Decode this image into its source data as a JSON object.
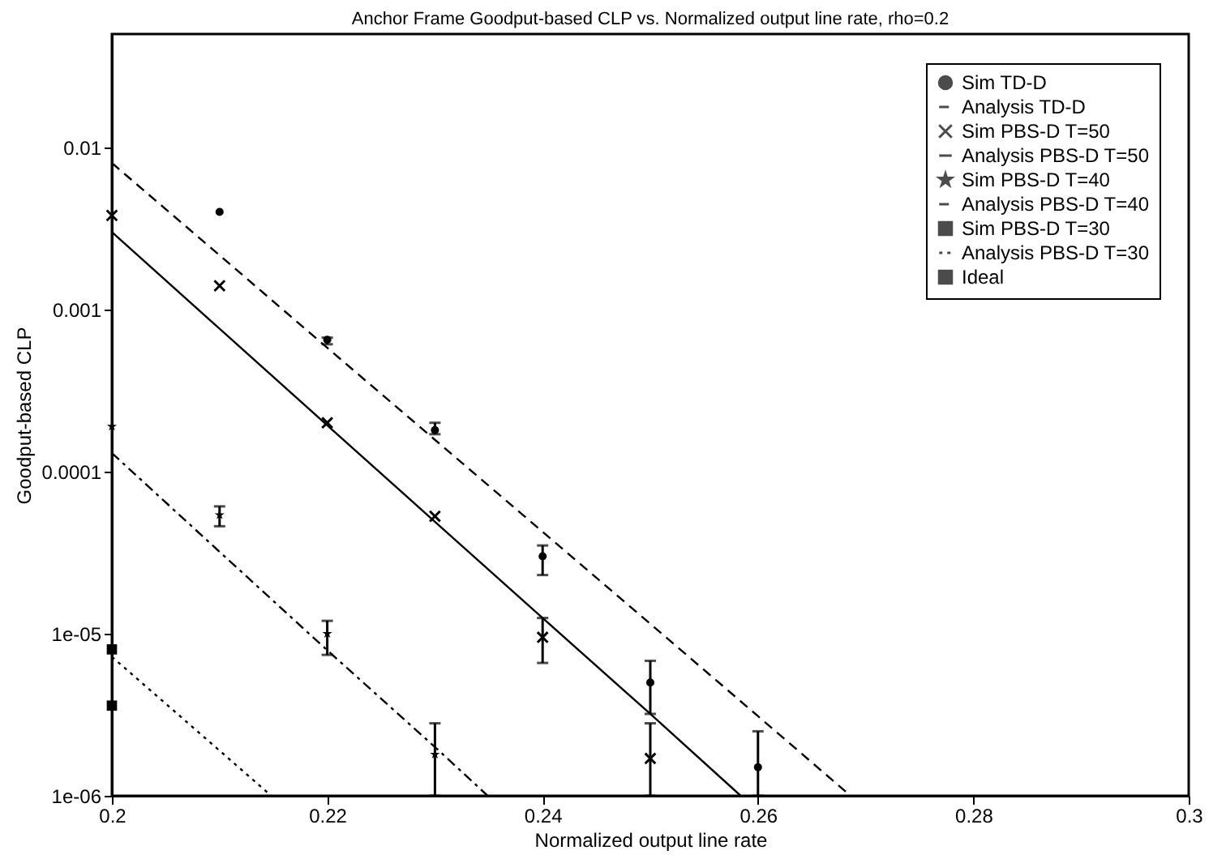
{
  "chart_data": {
    "type": "scatter",
    "title": "Anchor Frame Goodput-based CLP vs. Normalized output line rate, rho=0.2",
    "xlabel": "Normalized output line rate",
    "ylabel": "Goodput-based CLP",
    "log": "y",
    "grid": false,
    "legend": "top right",
    "xlim": [
      0.2,
      0.3
    ],
    "xticks": [
      0.2,
      0.22,
      0.24,
      0.26,
      0.28,
      0.3
    ],
    "ylim": [
      1e-06,
      0.05
    ],
    "yticks": [
      {
        "value": 1e-06,
        "label": "1e-06"
      },
      {
        "value": 1e-05,
        "label": "1e-05"
      },
      0.0001,
      0.001,
      0.01
    ],
    "series": [
      {
        "name": "Sim TD-D",
        "marker": "circle",
        "color": "#000000",
        "x": [
          0.21,
          0.22,
          0.23,
          0.24,
          0.25,
          0.26
        ],
        "values": [
          0.004,
          0.00065,
          0.00018,
          3e-05,
          5e-06,
          1.5e-06
        ],
        "errors": [
          null,
          [
            0.00061,
            0.00067
          ],
          [
            0.00017,
            0.0002
          ],
          [
            2.3e-05,
            3.5e-05
          ],
          [
            3.2e-06,
            6.8e-06
          ],
          [
            1e-06,
            2.5e-06
          ]
        ]
      },
      {
        "name": "Analysis TD-D",
        "type": "line",
        "line_style": "dashed",
        "color": "#000000",
        "x": [
          0.2,
          0.21,
          0.22,
          0.23,
          0.24,
          0.25,
          0.26,
          0.2686
        ],
        "values": [
          0.008,
          0.00216,
          0.00058,
          0.000157,
          4.25e-05,
          1.15e-05,
          3.1e-06,
          1e-06
        ]
      },
      {
        "name": "Sim PBS-D T=50",
        "marker": "cross",
        "color": "#000000",
        "x": [
          0.2,
          0.21,
          0.22,
          0.23,
          0.24,
          0.25
        ],
        "values": [
          0.0038,
          0.0014,
          0.0002,
          5.3e-05,
          9.5e-06,
          1.7e-06
        ],
        "errors": [
          null,
          null,
          null,
          null,
          [
            6.6e-06,
            1.25e-05
          ],
          [
            1e-06,
            2.8e-06
          ]
        ]
      },
      {
        "name": "Analysis PBS-D T=50",
        "type": "line",
        "line_style": "solid",
        "color": "#000000",
        "x": [
          0.2,
          0.21,
          0.22,
          0.23,
          0.24,
          0.25,
          0.2584
        ],
        "values": [
          0.003,
          0.00076,
          0.000193,
          4.9e-05,
          1.25e-05,
          3.2e-06,
          1e-06
        ]
      },
      {
        "name": "Sim PBS-D T=40",
        "marker": "star",
        "color": "#000000",
        "x": [
          0.2,
          0.21,
          0.22,
          0.23
        ],
        "values": [
          0.00019,
          5.4e-05,
          1e-05,
          1.8e-06
        ],
        "errors": [
          null,
          [
            4.6e-05,
            6.1e-05
          ],
          [
            7.4e-06,
            1.2e-05
          ],
          [
            1e-06,
            2.8e-06
          ]
        ]
      },
      {
        "name": "Analysis PBS-D T=40",
        "type": "line",
        "line_style": "dashdot",
        "color": "#000000",
        "x": [
          0.2,
          0.21,
          0.22,
          0.23,
          0.2349
        ],
        "values": [
          0.00013,
          3.2e-05,
          7.9e-06,
          2e-06,
          1e-06
        ]
      },
      {
        "name": "Sim PBS-D T=30",
        "marker": "square",
        "color": "#000000",
        "x": [
          0.2
        ],
        "values": [
          8e-06
        ]
      },
      {
        "name": "Analysis PBS-D T=30",
        "type": "line",
        "line_style": "dotted",
        "color": "#000000",
        "x": [
          0.2,
          0.21,
          0.2148
        ],
        "values": [
          7.2e-06,
          1.9e-06,
          1e-06
        ]
      },
      {
        "name": "Ideal",
        "marker": "square",
        "color": "#000000",
        "x": [
          0.2
        ],
        "values": [
          3.6e-06
        ]
      }
    ]
  }
}
